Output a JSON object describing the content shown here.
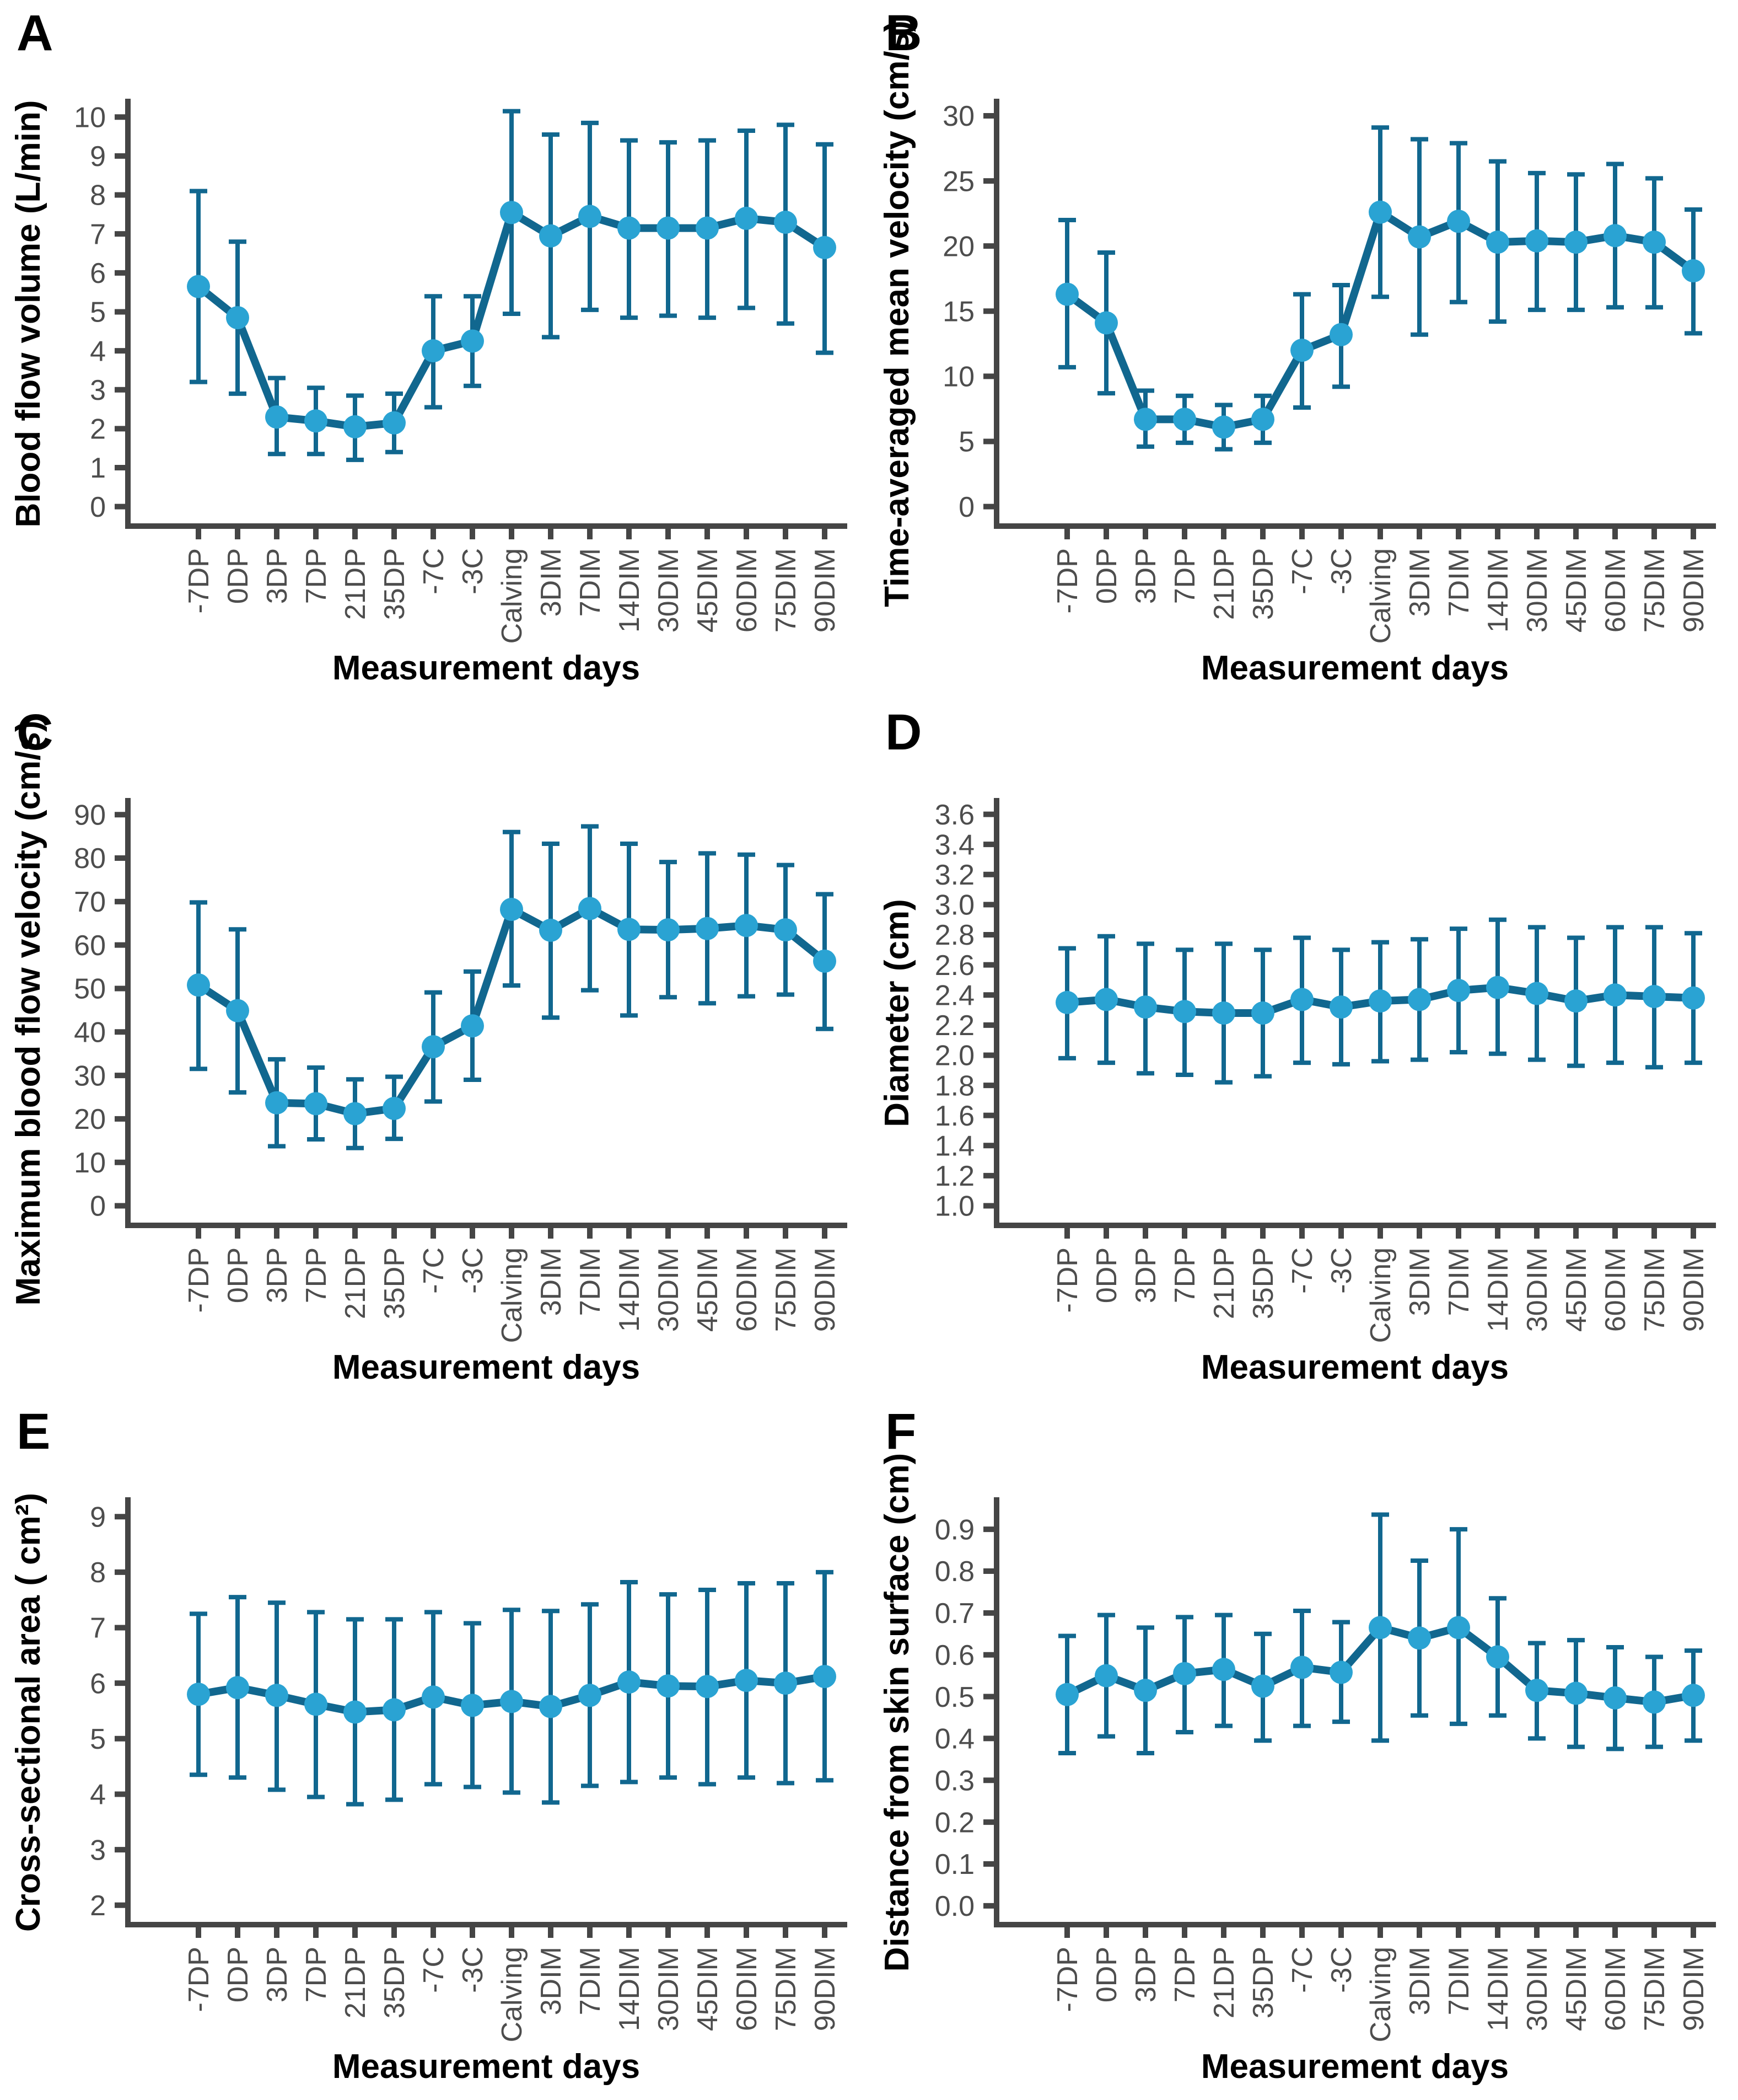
{
  "colors": {
    "line": "#11678f",
    "marker": "#2aa3d3",
    "axis": "#454545",
    "tick_label": "#4d4d4d",
    "title": "#000000"
  },
  "xlabel": "Measurement days",
  "categories": [
    "-7DP",
    "0DP",
    "3DP",
    "7DP",
    "21DP",
    "35DP",
    "-7C",
    "-3C",
    "Calving",
    "3DIM",
    "7DIM",
    "14DIM",
    "30DIM",
    "45DIM",
    "60DIM",
    "75DIM",
    "90DIM"
  ],
  "chart_data": [
    {
      "type": "line",
      "panel_label": "A",
      "ylabel": "Blood flow volume (L/min)",
      "xlabel": "Measurement days",
      "categories": [
        "-7DP",
        "0DP",
        "3DP",
        "7DP",
        "21DP",
        "35DP",
        "-7C",
        "-3C",
        "Calving",
        "3DIM",
        "7DIM",
        "14DIM",
        "30DIM",
        "45DIM",
        "60DIM",
        "75DIM",
        "90DIM"
      ],
      "values": [
        5.65,
        4.85,
        2.3,
        2.2,
        2.05,
        2.15,
        4.0,
        4.25,
        7.55,
        6.95,
        7.45,
        7.15,
        7.15,
        7.15,
        7.4,
        7.3,
        6.65
      ],
      "error_lo": [
        3.2,
        2.9,
        1.35,
        1.35,
        1.2,
        1.4,
        2.55,
        3.1,
        4.95,
        4.35,
        5.05,
        4.85,
        4.9,
        4.85,
        5.1,
        4.7,
        3.95
      ],
      "error_hi": [
        8.1,
        6.8,
        3.3,
        3.05,
        2.85,
        2.9,
        5.4,
        5.4,
        10.15,
        9.55,
        9.85,
        9.4,
        9.35,
        9.4,
        9.65,
        9.8,
        9.3
      ],
      "yticks": {
        "from": 0,
        "to": 10,
        "step": 1,
        "decimals": 0
      },
      "ylim": [
        -0.5,
        10.4
      ],
      "grid": false,
      "legend": "none"
    },
    {
      "type": "line",
      "panel_label": "B",
      "ylabel": "Time-averaged mean velocity (cm/s)",
      "xlabel": "Measurement days",
      "categories": [
        "-7DP",
        "0DP",
        "3DP",
        "7DP",
        "21DP",
        "35DP",
        "-7C",
        "-3C",
        "Calving",
        "3DIM",
        "7DIM",
        "14DIM",
        "30DIM",
        "45DIM",
        "60DIM",
        "75DIM",
        "90DIM"
      ],
      "values": [
        16.3,
        14.1,
        6.7,
        6.7,
        6.1,
        6.7,
        12.0,
        13.2,
        22.6,
        20.7,
        21.9,
        20.3,
        20.4,
        20.3,
        20.8,
        20.3,
        18.1
      ],
      "error_lo": [
        10.7,
        8.7,
        4.6,
        4.9,
        4.4,
        4.9,
        7.6,
        9.2,
        16.1,
        13.2,
        15.7,
        14.2,
        15.1,
        15.1,
        15.3,
        15.3,
        13.3
      ],
      "error_hi": [
        22.0,
        19.5,
        8.9,
        8.5,
        7.8,
        8.5,
        16.3,
        17.0,
        29.1,
        28.2,
        27.9,
        26.5,
        25.6,
        25.5,
        26.3,
        25.2,
        22.8
      ],
      "yticks": {
        "from": 0,
        "to": 30,
        "step": 5,
        "decimals": 0
      },
      "ylim": [
        -1.5,
        31.1
      ],
      "grid": false,
      "legend": "none"
    },
    {
      "type": "line",
      "panel_label": "C",
      "ylabel": "Maximum blood flow velocity (cm/s)",
      "xlabel": "Measurement days",
      "categories": [
        "-7DP",
        "0DP",
        "3DP",
        "7DP",
        "21DP",
        "35DP",
        "-7C",
        "-3C",
        "Calving",
        "3DIM",
        "7DIM",
        "14DIM",
        "30DIM",
        "45DIM",
        "60DIM",
        "75DIM",
        "90DIM"
      ],
      "values": [
        50.8,
        44.9,
        23.7,
        23.5,
        21.2,
        22.4,
        36.6,
        41.4,
        68.2,
        63.4,
        68.4,
        63.6,
        63.5,
        63.8,
        64.5,
        63.5,
        56.3
      ],
      "error_lo": [
        31.5,
        26.1,
        13.7,
        15.3,
        13.3,
        15.4,
        24.0,
        29.0,
        50.7,
        43.3,
        49.6,
        43.8,
        48.0,
        46.6,
        48.2,
        48.6,
        40.7
      ],
      "error_hi": [
        69.8,
        63.6,
        33.7,
        31.8,
        29.1,
        29.7,
        49.1,
        53.9,
        86.0,
        83.3,
        87.3,
        83.3,
        79.1,
        81.1,
        80.8,
        78.4,
        71.7
      ],
      "yticks": {
        "from": 0,
        "to": 90,
        "step": 10,
        "decimals": 0
      },
      "ylim": [
        -4.5,
        93.2
      ],
      "grid": false,
      "legend": "none"
    },
    {
      "type": "line",
      "panel_label": "D",
      "ylabel": "Diameter (cm)",
      "xlabel": "Measurement days",
      "categories": [
        "-7DP",
        "0DP",
        "3DP",
        "7DP",
        "21DP",
        "35DP",
        "-7C",
        "-3C",
        "Calving",
        "3DIM",
        "7DIM",
        "14DIM",
        "30DIM",
        "45DIM",
        "60DIM",
        "75DIM",
        "90DIM"
      ],
      "values": [
        2.35,
        2.37,
        2.32,
        2.29,
        2.28,
        2.28,
        2.37,
        2.32,
        2.36,
        2.37,
        2.43,
        2.45,
        2.41,
        2.36,
        2.4,
        2.39,
        2.38
      ],
      "error_lo": [
        1.98,
        1.95,
        1.88,
        1.87,
        1.82,
        1.86,
        1.95,
        1.94,
        1.96,
        1.97,
        2.02,
        2.01,
        1.97,
        1.93,
        1.95,
        1.92,
        1.95
      ],
      "error_hi": [
        2.71,
        2.79,
        2.74,
        2.7,
        2.74,
        2.7,
        2.78,
        2.7,
        2.75,
        2.77,
        2.84,
        2.9,
        2.85,
        2.78,
        2.85,
        2.85,
        2.81
      ],
      "yticks": {
        "from": 1.0,
        "to": 3.6,
        "step": 0.2,
        "decimals": 1
      },
      "ylim": [
        0.87,
        3.69
      ],
      "grid": false,
      "legend": "none"
    },
    {
      "type": "line",
      "panel_label": "E",
      "ylabel": "Cross-sectional area ( cm²)",
      "xlabel": "Measurement days",
      "categories": [
        "-7DP",
        "0DP",
        "3DP",
        "7DP",
        "21DP",
        "35DP",
        "-7C",
        "-3C",
        "Calving",
        "3DIM",
        "7DIM",
        "14DIM",
        "30DIM",
        "45DIM",
        "60DIM",
        "75DIM",
        "90DIM"
      ],
      "values": [
        5.8,
        5.92,
        5.78,
        5.62,
        5.48,
        5.52,
        5.75,
        5.6,
        5.67,
        5.58,
        5.78,
        6.02,
        5.95,
        5.94,
        6.05,
        6.0,
        6.12
      ],
      "error_lo": [
        4.35,
        4.3,
        4.08,
        3.95,
        3.82,
        3.9,
        4.18,
        4.13,
        4.03,
        3.85,
        4.15,
        4.22,
        4.3,
        4.18,
        4.3,
        4.2,
        4.25
      ],
      "error_hi": [
        7.25,
        7.55,
        7.45,
        7.28,
        7.15,
        7.15,
        7.28,
        7.08,
        7.32,
        7.3,
        7.42,
        7.82,
        7.6,
        7.68,
        7.8,
        7.8,
        8.0
      ],
      "yticks": {
        "from": 2,
        "to": 9,
        "step": 1,
        "decimals": 0
      },
      "ylim": [
        1.65,
        9.3
      ],
      "grid": false,
      "legend": "none"
    },
    {
      "type": "line",
      "panel_label": "F",
      "ylabel": "Distance from skin surface (cm)",
      "xlabel": "Measurement days",
      "categories": [
        "-7DP",
        "0DP",
        "3DP",
        "7DP",
        "21DP",
        "35DP",
        "-7C",
        "-3C",
        "Calving",
        "3DIM",
        "7DIM",
        "14DIM",
        "30DIM",
        "45DIM",
        "60DIM",
        "75DIM",
        "90DIM"
      ],
      "values": [
        0.505,
        0.55,
        0.515,
        0.555,
        0.565,
        0.525,
        0.57,
        0.558,
        0.665,
        0.64,
        0.665,
        0.595,
        0.515,
        0.508,
        0.497,
        0.487,
        0.503
      ],
      "error_lo": [
        0.365,
        0.405,
        0.365,
        0.415,
        0.43,
        0.395,
        0.43,
        0.44,
        0.395,
        0.455,
        0.435,
        0.455,
        0.4,
        0.38,
        0.375,
        0.38,
        0.395
      ],
      "error_hi": [
        0.645,
        0.695,
        0.665,
        0.69,
        0.695,
        0.65,
        0.705,
        0.678,
        0.935,
        0.825,
        0.9,
        0.735,
        0.628,
        0.635,
        0.618,
        0.595,
        0.61
      ],
      "yticks": {
        "from": 0.0,
        "to": 0.9,
        "step": 0.1,
        "decimals": 1
      },
      "ylim": [
        -0.045,
        0.97
      ],
      "grid": false,
      "legend": "none"
    }
  ]
}
